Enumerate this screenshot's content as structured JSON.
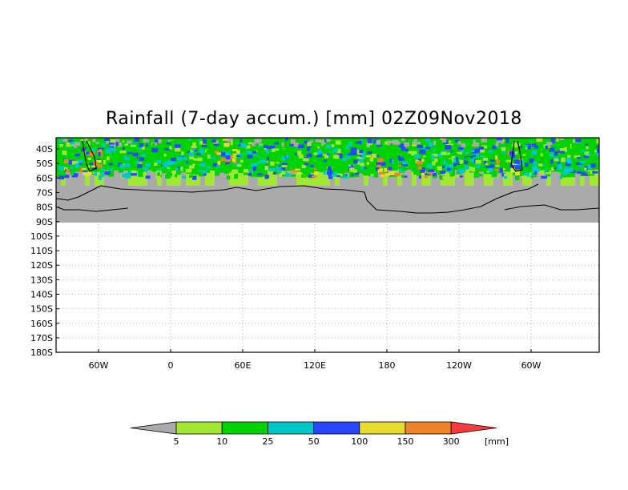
{
  "title": "Rainfall (7-day accum.) [mm] 02Z09Nov2018",
  "lat_labels": [
    "40S",
    "50S",
    "60S",
    "70S",
    "80S",
    "90S",
    "100S",
    "110S",
    "120S",
    "130S",
    "140S",
    "150S",
    "160S",
    "170S",
    "180S"
  ],
  "lon_labels": [
    "60W",
    "0",
    "60E",
    "120E",
    "180",
    "120W",
    "60W"
  ],
  "colorbar": {
    "levels": [
      "5",
      "10",
      "25",
      "50",
      "100",
      "150",
      "300"
    ],
    "unit": "[mm]",
    "colors": [
      "#aaaaaa",
      "#a0e632",
      "#00d200",
      "#00c8c8",
      "#2846ff",
      "#e6dc32",
      "#f08228",
      "#fa3c3c"
    ]
  },
  "colors": {
    "land": "#aaaaaa",
    "grid": "#9a9a9a",
    "frame": "#000000"
  }
}
